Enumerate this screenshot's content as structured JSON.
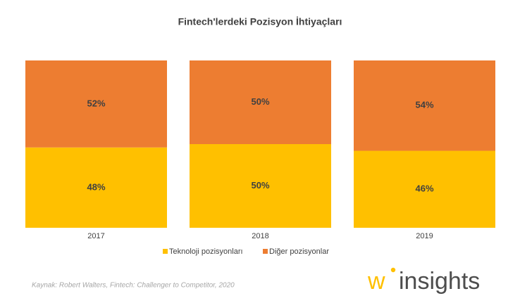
{
  "chart_data": {
    "type": "stacked-bar",
    "title": "Fintech'lerdeki Pozisyon İhtiyaçları",
    "categories": [
      "2017",
      "2018",
      "2019"
    ],
    "series": [
      {
        "name": "Teknoloji pozisyonları",
        "color": "#FFC000",
        "values": [
          48,
          50,
          46
        ],
        "value_labels": [
          "48%",
          "50%",
          "46%"
        ]
      },
      {
        "name": "Diğer pozisyonlar",
        "color": "#ED7D31",
        "values": [
          52,
          50,
          54
        ],
        "value_labels": [
          "52%",
          "50%",
          "54%"
        ]
      }
    ],
    "ylim": [
      0,
      100
    ],
    "legend": "bottom",
    "source": "Kaynak: Robert Walters, Fintech: Challenger to Competitor, 2020"
  },
  "logo": {
    "mark": "w",
    "name": "insights"
  }
}
